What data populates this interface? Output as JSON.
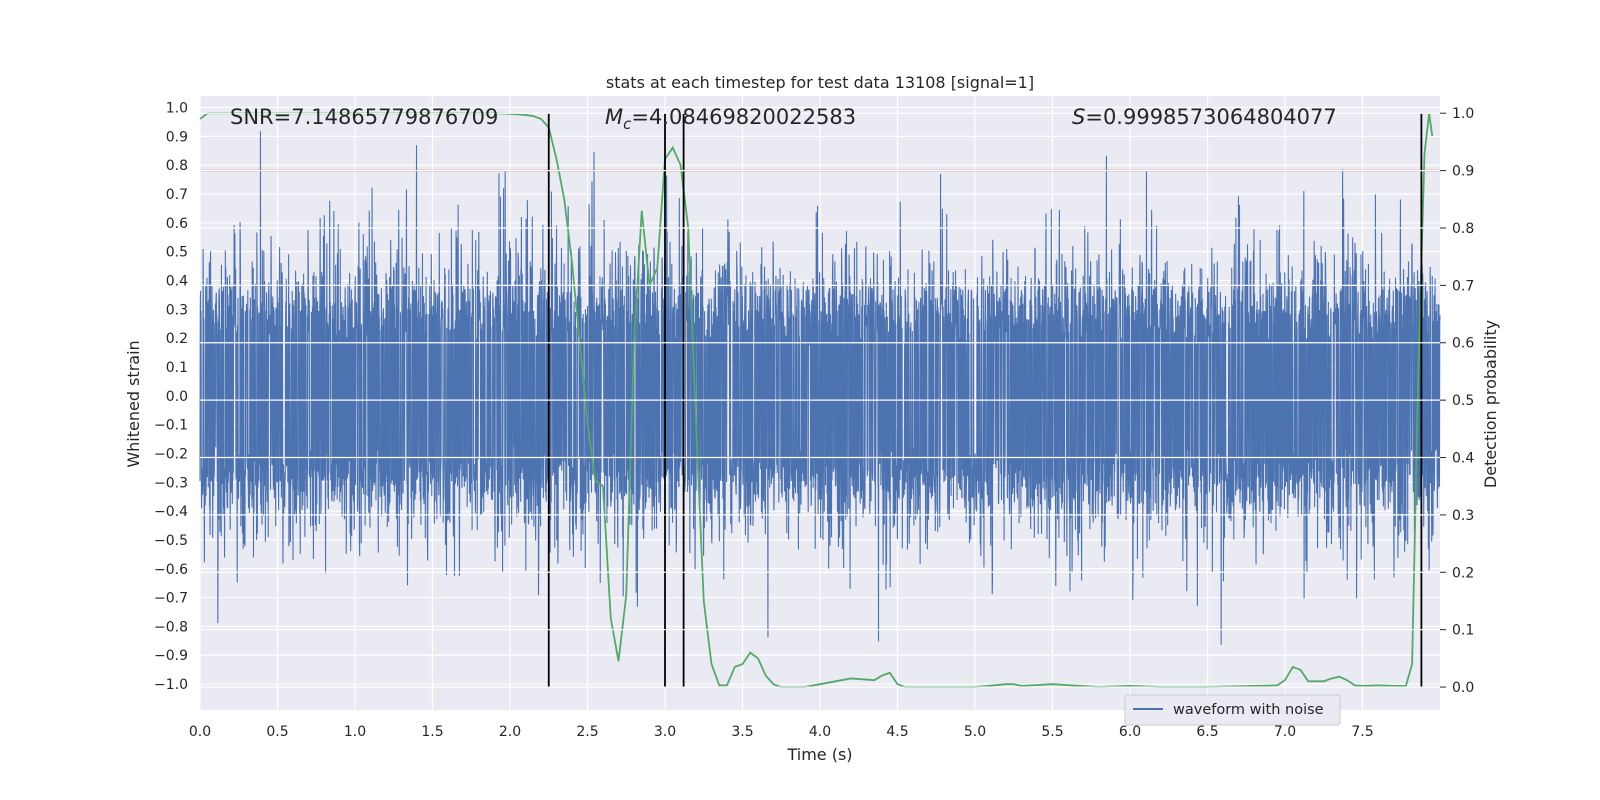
{
  "chart_data": {
    "type": "line",
    "title": "stats at each timestep for test data 13108 [signal=1]",
    "xlabel": "Time (s)",
    "ylabel_left": "Whitened strain",
    "ylabel_right": "Detection probability",
    "xlim": [
      0,
      8.0
    ],
    "ylim_left": [
      -1.09,
      1.04
    ],
    "ylim_right": [
      -0.04,
      1.03
    ],
    "x_ticks": [
      "0.0",
      "0.5",
      "1.0",
      "1.5",
      "2.0",
      "2.5",
      "3.0",
      "3.5",
      "4.0",
      "4.5",
      "5.0",
      "5.5",
      "6.0",
      "6.5",
      "7.0",
      "7.5"
    ],
    "y_left_ticks": [
      "1.0",
      "0.9",
      "0.8",
      "0.7",
      "0.6",
      "0.5",
      "0.4",
      "0.3",
      "0.2",
      "0.1",
      "0.0",
      "−0.1",
      "−0.2",
      "−0.3",
      "−0.4",
      "−0.5",
      "−0.6",
      "−0.7",
      "−0.8",
      "−0.9",
      "−1.0"
    ],
    "y_right_ticks": [
      "1.0",
      "0.9",
      "0.8",
      "0.7",
      "0.6",
      "0.5",
      "0.4",
      "0.3",
      "0.2",
      "0.1",
      "0.0"
    ],
    "annotations": {
      "snr": "SNR=7.14865779876709",
      "mc_symbol": "M",
      "mc_subscript": "c",
      "mc_value": "=4.08469820022583",
      "s_symbol": "S",
      "s_value": "=0.9998573064804077"
    },
    "threshold": {
      "value": 0.9,
      "axis": "right",
      "color": "#c03d3e"
    },
    "vertical_lines": [
      2.25,
      3.0,
      3.12,
      7.88
    ],
    "series": [
      {
        "name": "waveform with noise",
        "axis": "left",
        "color": "#4c72b0",
        "style": "dense noise, band approx -0.45 to 0.45 with peaks up to 0.95 and dips to -0.97",
        "seed": 13108,
        "duration": 8.0
      },
      {
        "name": "detection probability",
        "axis": "right",
        "color": "#55a868",
        "x": [
          0.0,
          0.05,
          0.1,
          0.2,
          0.5,
          1.0,
          1.5,
          1.9,
          2.0,
          2.05,
          2.1,
          2.15,
          2.2,
          2.25,
          2.3,
          2.35,
          2.4,
          2.45,
          2.5,
          2.55,
          2.6,
          2.65,
          2.7,
          2.75,
          2.8,
          2.85,
          2.9,
          2.95,
          3.0,
          3.05,
          3.1,
          3.15,
          3.2,
          3.25,
          3.3,
          3.35,
          3.4,
          3.45,
          3.5,
          3.55,
          3.6,
          3.65,
          3.7,
          3.75,
          3.8,
          3.9,
          4.0,
          4.2,
          4.35,
          4.4,
          4.45,
          4.5,
          4.55,
          4.6,
          4.8,
          5.0,
          5.2,
          5.25,
          5.3,
          5.5,
          5.8,
          6.0,
          6.2,
          6.5,
          6.8,
          6.95,
          7.0,
          7.05,
          7.1,
          7.15,
          7.25,
          7.3,
          7.35,
          7.4,
          7.45,
          7.5,
          7.6,
          7.7,
          7.78,
          7.82,
          7.86,
          7.9,
          7.93,
          7.95
        ],
        "y": [
          0.99,
          1.0,
          1.0,
          1.0,
          1.0,
          1.0,
          1.0,
          1.0,
          0.999,
          0.998,
          0.997,
          0.995,
          0.99,
          0.975,
          0.92,
          0.85,
          0.74,
          0.6,
          0.46,
          0.36,
          0.35,
          0.12,
          0.045,
          0.16,
          0.6,
          0.83,
          0.7,
          0.73,
          0.92,
          0.94,
          0.91,
          0.8,
          0.46,
          0.15,
          0.04,
          0.003,
          0.003,
          0.035,
          0.04,
          0.06,
          0.05,
          0.02,
          0.005,
          0.0,
          0.0,
          0.0,
          0.005,
          0.015,
          0.012,
          0.02,
          0.025,
          0.005,
          0.0,
          0.0,
          0.0,
          0.0,
          0.005,
          0.005,
          0.002,
          0.005,
          0.0,
          0.002,
          0.0,
          0.0,
          0.002,
          0.003,
          0.012,
          0.035,
          0.03,
          0.01,
          0.01,
          0.015,
          0.018,
          0.012,
          0.003,
          0.002,
          0.003,
          0.002,
          0.002,
          0.04,
          0.55,
          0.93,
          1.0,
          0.96
        ]
      }
    ],
    "legend": {
      "label": "waveform with noise",
      "placement": "lower-right"
    },
    "grid": true
  }
}
